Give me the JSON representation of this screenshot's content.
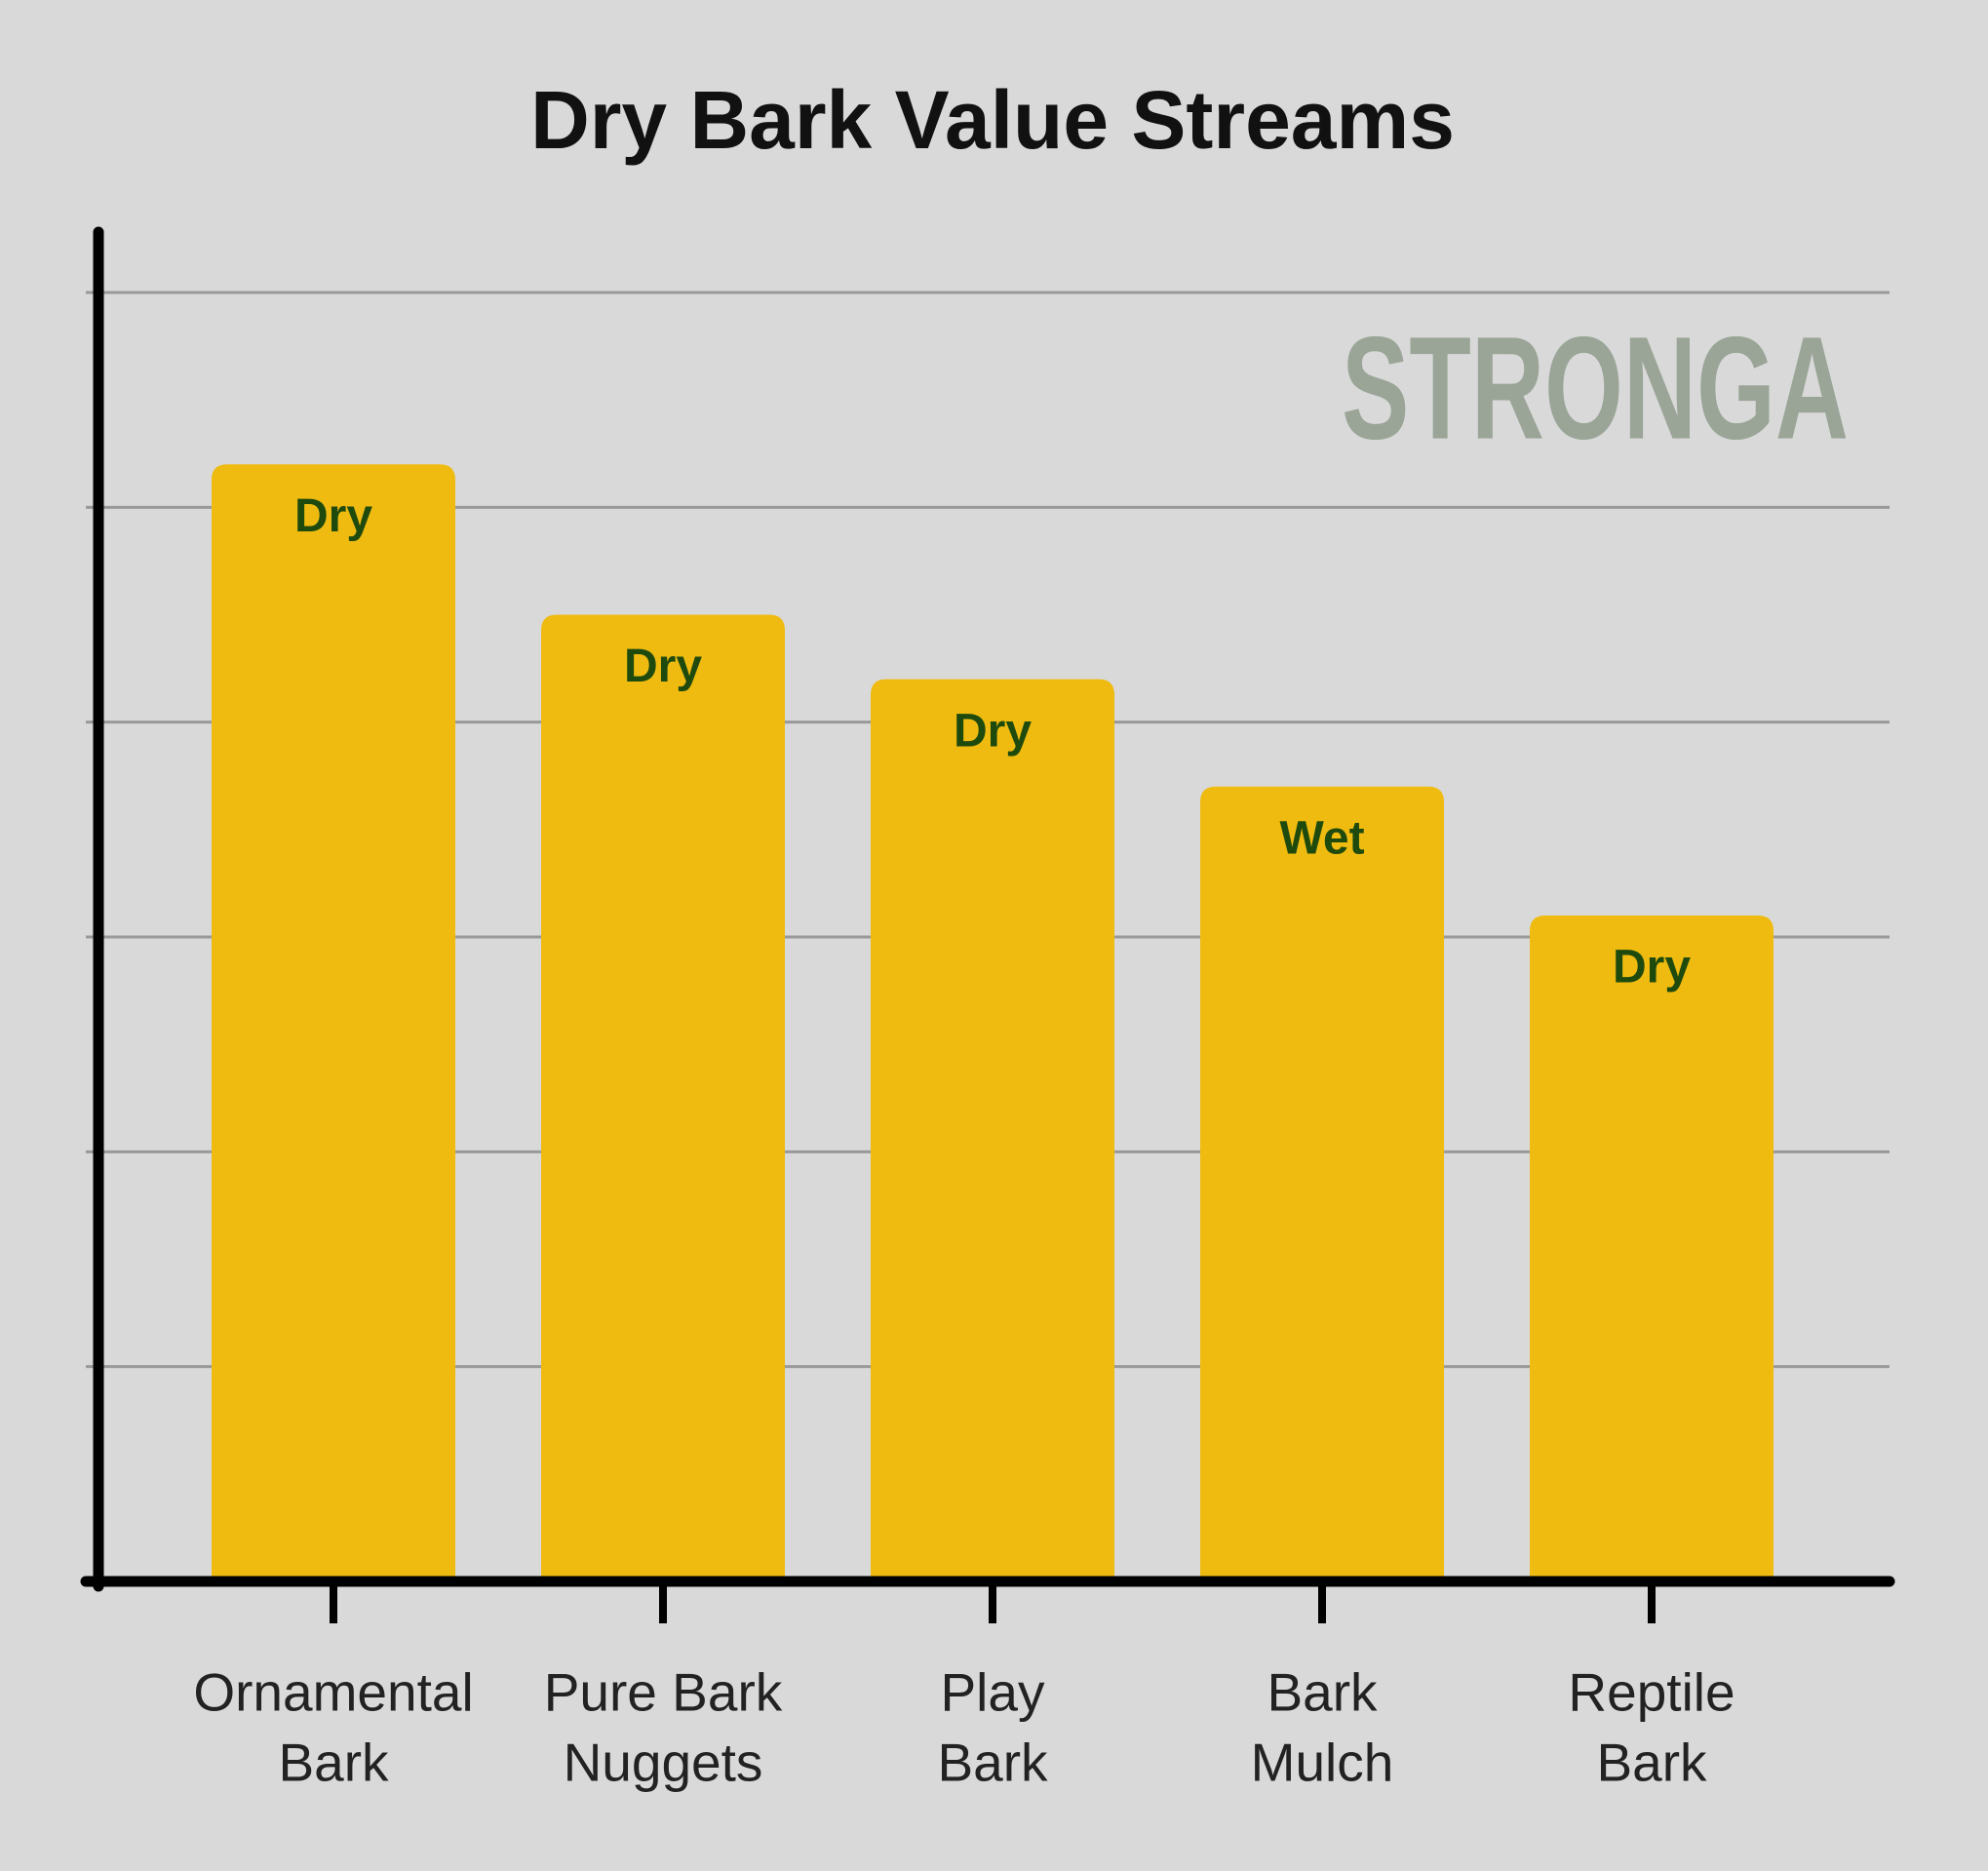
{
  "chart_data": {
    "type": "bar",
    "title": "Dry Bark Value Streams",
    "watermark": "STRONGA",
    "categories": [
      [
        "Ornamental",
        "Bark"
      ],
      [
        "Pure Bark",
        "Nuggets"
      ],
      [
        "Play",
        "Bark"
      ],
      [
        "Bark",
        "Mulch"
      ],
      [
        "Reptile",
        "Bark"
      ]
    ],
    "values": [
      5.2,
      4.5,
      4.2,
      3.7,
      3.1
    ],
    "labels": [
      "Dry",
      "Dry",
      "Dry",
      "Wet",
      "Dry"
    ],
    "color": "#efbb10",
    "ylim": [
      0,
      6
    ],
    "yticks": [
      1,
      2,
      3,
      4,
      5,
      6
    ],
    "grid": true
  }
}
